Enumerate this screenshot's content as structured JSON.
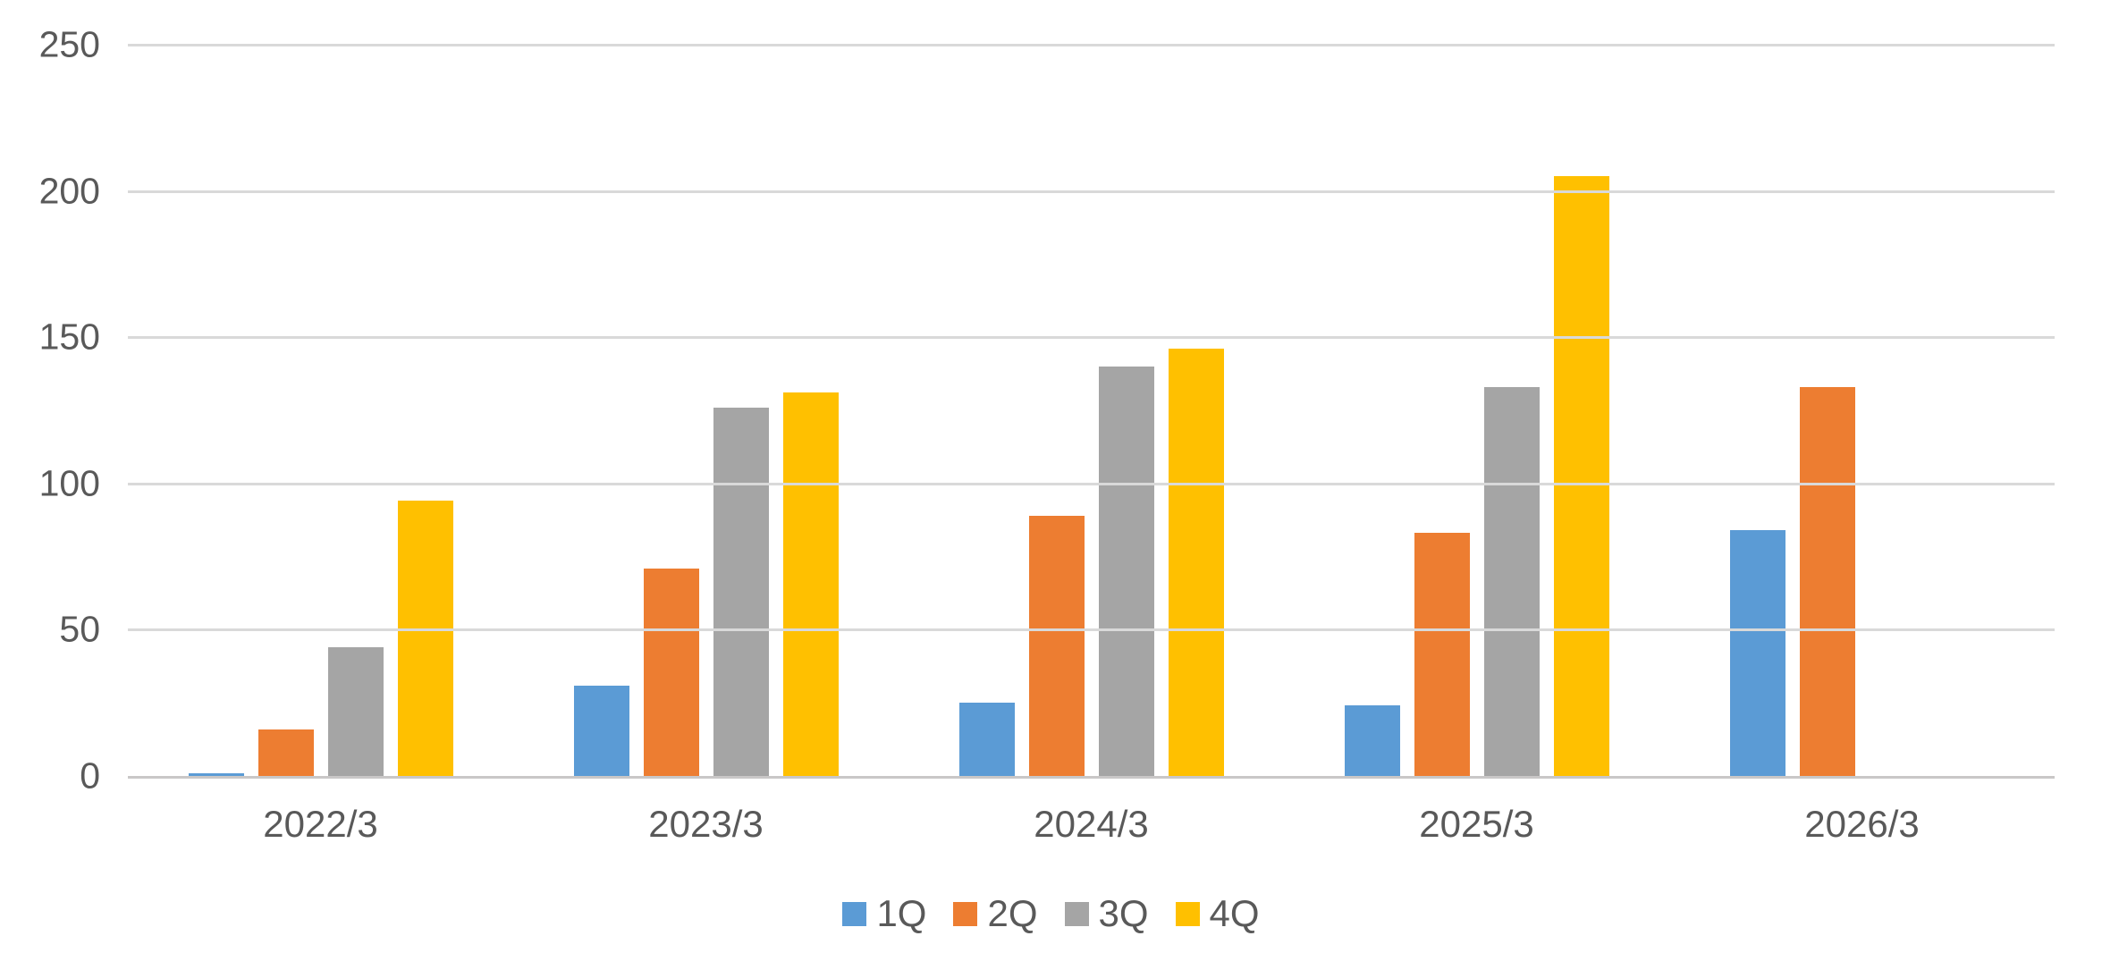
{
  "chart_data": {
    "type": "bar",
    "title": "",
    "xlabel": "",
    "ylabel": "",
    "categories": [
      "2022/3",
      "2023/3",
      "2024/3",
      "2025/3",
      "2026/3"
    ],
    "series": [
      {
        "name": "1Q",
        "color": "#5B9BD5",
        "values": [
          1,
          31,
          25,
          24,
          84
        ]
      },
      {
        "name": "2Q",
        "color": "#ED7D31",
        "values": [
          16,
          71,
          89,
          83,
          133
        ]
      },
      {
        "name": "3Q",
        "color": "#A5A5A5",
        "values": [
          44,
          126,
          140,
          133,
          null
        ]
      },
      {
        "name": "4Q",
        "color": "#FFC000",
        "values": [
          94,
          131,
          146,
          205,
          null
        ]
      }
    ],
    "ylim": [
      0,
      250
    ],
    "yticks": [
      0,
      50,
      100,
      150,
      200,
      250
    ],
    "grid": true,
    "legend_position": "bottom",
    "legend_labels": [
      "1Q",
      "2Q",
      "3Q",
      "4Q"
    ]
  },
  "colors": {
    "background": "#FFFFFF",
    "gridline": "#D9D9D9",
    "axis_line": "#C9C7C7",
    "tick_text": "#595959"
  }
}
